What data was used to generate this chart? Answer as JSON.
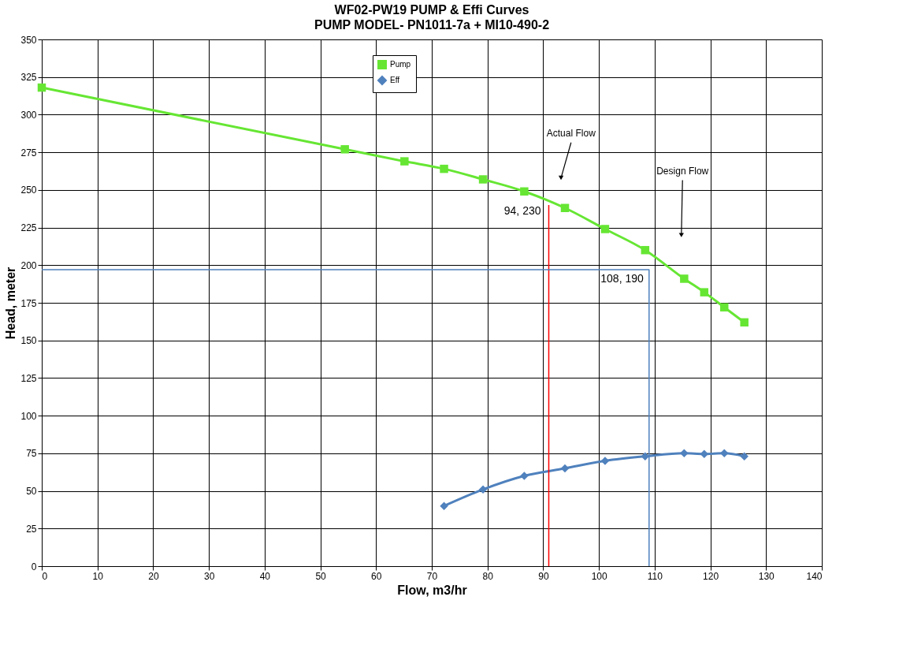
{
  "chart_data": {
    "type": "line",
    "title": "WF02-PW19 PUMP & Effi Curves",
    "subtitle": "PUMP MODEL- PN1011-7a + MI10-490-2",
    "xlabel": "Flow, m3/hr",
    "ylabel": "Head, meter",
    "xlim": [
      0,
      140
    ],
    "xticks": [
      0,
      10,
      20,
      30,
      40,
      50,
      60,
      70,
      80,
      90,
      100,
      110,
      120,
      130,
      140
    ],
    "ylim": [
      0,
      350
    ],
    "yticks": [
      0,
      25,
      50,
      75,
      100,
      125,
      150,
      175,
      200,
      225,
      250,
      275,
      300,
      325,
      350
    ],
    "grid": true,
    "legend": "top",
    "series": [
      {
        "name": "Pump",
        "color": "#66e633",
        "marker": "square",
        "x": [
          0,
          54.4,
          65.1,
          72.2,
          79.2,
          86.6,
          93.9,
          101.1,
          108.3,
          115.3,
          118.9,
          122.5,
          126.1
        ],
        "values": [
          318,
          277,
          269,
          264,
          257,
          249,
          238,
          224,
          210,
          191,
          182,
          172,
          162
        ]
      },
      {
        "name": "Eff",
        "color": "#4f81bd",
        "marker": "diamond",
        "x": [
          72.2,
          79.2,
          86.6,
          93.9,
          101.1,
          108.3,
          115.3,
          118.9,
          122.5,
          126.1
        ],
        "values": [
          40,
          51,
          60,
          65,
          70,
          73,
          75,
          74.5,
          75,
          73
        ]
      },
      {
        "color": "#ff0000",
        "marker": "none",
        "x": [
          91,
          91
        ],
        "values": [
          0,
          240
        ]
      },
      {
        "color": "#4f81bd",
        "marker": "none",
        "x": [
          0,
          109,
          109
        ],
        "values": [
          197,
          197,
          0
        ]
      }
    ],
    "annotations": [
      {
        "text": "94, 230",
        "x": 91,
        "y": 240
      },
      {
        "text": "108, 190",
        "x": 109,
        "y": 197
      },
      {
        "text": "Actual Flow",
        "x": 93.2,
        "y": 258
      },
      {
        "text": "Design Flow",
        "x": 114.8,
        "y": 220
      }
    ]
  }
}
